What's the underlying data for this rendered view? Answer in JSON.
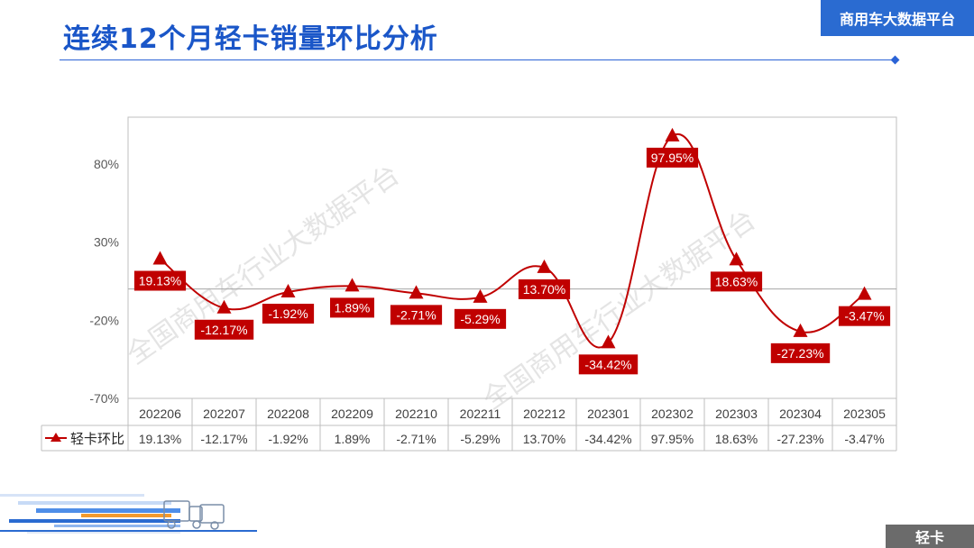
{
  "header": {
    "title": "连续12个月轻卡销量环比分析",
    "brand": "商用车大数据平台"
  },
  "footer": {
    "tag": "轻卡"
  },
  "watermark": {
    "text": "全国商用车行业大数据平台"
  },
  "colors": {
    "accent": "#1a56c8",
    "series": "#c00000",
    "label_bg": "#c00000",
    "badge": "#2a6bd1"
  },
  "chart_data": {
    "type": "line",
    "categories": [
      "202206",
      "202207",
      "202208",
      "202209",
      "202210",
      "202211",
      "202212",
      "202301",
      "202302",
      "202303",
      "202304",
      "202305"
    ],
    "series": [
      {
        "name": "轻卡环比",
        "values": [
          19.13,
          -12.17,
          -1.92,
          1.89,
          -2.71,
          -5.29,
          13.7,
          -34.42,
          97.95,
          18.63,
          -27.23,
          -3.47
        ],
        "labels": [
          "19.13%",
          "-12.17%",
          "-1.92%",
          "1.89%",
          "-2.71%",
          "-5.29%",
          "13.70%",
          "-34.42%",
          "97.95%",
          "18.63%",
          "-27.23%",
          "-3.47%"
        ],
        "marker": "triangle",
        "smooth": true
      }
    ],
    "ylim": [
      -70,
      110
    ],
    "yticks": [
      -70,
      -20,
      30,
      80
    ],
    "ytick_labels": [
      "-70%",
      "-20%",
      "30%",
      "80%"
    ],
    "data_table": true,
    "legend_in_table": true,
    "grid": false
  }
}
